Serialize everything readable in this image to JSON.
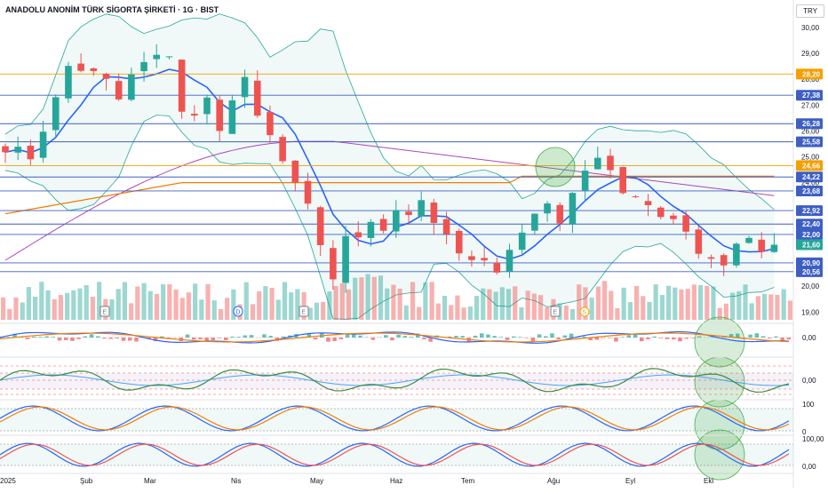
{
  "chart_data": {
    "type": "candlestick",
    "title": "ANADOLU ANONİM TÜRK SİGORTA ŞİRKETİ · 1G · BIST",
    "currency": "TRY",
    "x_labels": [
      "2025",
      "Şub",
      "Mar",
      "Nis",
      "May",
      "Haz",
      "Tem",
      "Ağu",
      "Eyl",
      "Eki"
    ],
    "y_ticks": [
      "30,00",
      "29,00",
      "28,00",
      "27,00",
      "26,00",
      "25,00",
      "24,00",
      "23,00",
      "22,00",
      "21,00",
      "20,00",
      "19,00"
    ],
    "ylim": [
      18.7,
      30.1
    ],
    "horizontal_levels": [
      {
        "value": 28.2,
        "label": "28,20",
        "color": "#f59f00"
      },
      {
        "value": 27.38,
        "label": "27,38",
        "color": "#3d5fc4"
      },
      {
        "value": 26.28,
        "label": "26,28",
        "color": "#3d5fc4"
      },
      {
        "value": 25.58,
        "label": "25,58",
        "color": "#3d5fc4"
      },
      {
        "value": 24.66,
        "label": "24,66",
        "color": "#f59f00"
      },
      {
        "value": 24.22,
        "label": "24,22",
        "color": "#3d5fc4"
      },
      {
        "value": 23.68,
        "label": "23,68",
        "color": "#3d5fc4"
      },
      {
        "value": 22.92,
        "label": "22,92",
        "color": "#3d5fc4"
      },
      {
        "value": 22.4,
        "label": "22,40",
        "color": "#3d5fc4"
      },
      {
        "value": 22.0,
        "label": "22,00",
        "color": "#3d5fc4"
      },
      {
        "value": 20.9,
        "label": "20,90",
        "color": "#3d5fc4"
      },
      {
        "value": 20.56,
        "label": "20,56",
        "color": "#3d5fc4"
      }
    ],
    "last_price": {
      "value": 21.6,
      "label": "21,60",
      "color": "#26a69a"
    },
    "close_path": [
      [
        0,
        25.4
      ],
      [
        2,
        25.0
      ],
      [
        4,
        27.2
      ],
      [
        5,
        28.5
      ],
      [
        6,
        28.4
      ],
      [
        7,
        28.2
      ],
      [
        8,
        27.9
      ],
      [
        9,
        27.2
      ],
      [
        10,
        28.1
      ],
      [
        11,
        28.6
      ],
      [
        13,
        29.0
      ],
      [
        14,
        26.8
      ],
      [
        15,
        26.5
      ],
      [
        16,
        27.2
      ],
      [
        17,
        26.2
      ],
      [
        18,
        27.1
      ],
      [
        19,
        28.1
      ],
      [
        20,
        26.4
      ],
      [
        21,
        25.7
      ],
      [
        22,
        25.0
      ],
      [
        23,
        24.0
      ],
      [
        24,
        23.0
      ],
      [
        25,
        21.5
      ],
      [
        26,
        20.2
      ],
      [
        27,
        21.9
      ],
      [
        28,
        21.7
      ],
      [
        29,
        22.3
      ],
      [
        30,
        22.2
      ],
      [
        31,
        23.0
      ],
      [
        32,
        22.6
      ],
      [
        33,
        23.4
      ],
      [
        34,
        22.6
      ],
      [
        35,
        22.1
      ],
      [
        36,
        21.3
      ],
      [
        37,
        21.1
      ],
      [
        38,
        20.8
      ],
      [
        39,
        20.5
      ],
      [
        40,
        21.3
      ],
      [
        41,
        21.9
      ],
      [
        42,
        23.0
      ],
      [
        43,
        23.3
      ],
      [
        44,
        22.4
      ],
      [
        45,
        23.6
      ],
      [
        46,
        24.5
      ],
      [
        47,
        25.1
      ],
      [
        48,
        24.3
      ],
      [
        49,
        23.8
      ],
      [
        50,
        23.5
      ],
      [
        51,
        23.2
      ],
      [
        52,
        22.6
      ],
      [
        53,
        22.4
      ],
      [
        54,
        22.1
      ],
      [
        55,
        21.4
      ],
      [
        56,
        21.1
      ],
      [
        57,
        20.9
      ],
      [
        58,
        21.7
      ],
      [
        59,
        21.9
      ],
      [
        60,
        21.4
      ],
      [
        61,
        21.6
      ]
    ],
    "indicators": [
      "Bollinger Bands",
      "SMA 20",
      "SMA 50",
      "SMA 200",
      "Volume",
      "MACD",
      "RSI",
      "Stochastic",
      "Stochastic RSI"
    ],
    "volume_markers": [
      {
        "label": "E",
        "color": "#787b86"
      },
      {
        "label": "D",
        "color": "#2962ff"
      },
      {
        "label": "E",
        "color": "#787b86"
      },
      {
        "label": "E",
        "color": "#787b86"
      },
      {
        "label": "S",
        "color": "#f59f00"
      }
    ],
    "panes": [
      {
        "name": "macd",
        "ticks": [
          "0,00"
        ]
      },
      {
        "name": "rsi",
        "ticks": [
          "0,00"
        ]
      },
      {
        "name": "stochastic",
        "ticks": [
          "100",
          "0"
        ]
      },
      {
        "name": "stochastic-rsi",
        "ticks": [
          "100,00",
          "0,00"
        ]
      }
    ]
  }
}
